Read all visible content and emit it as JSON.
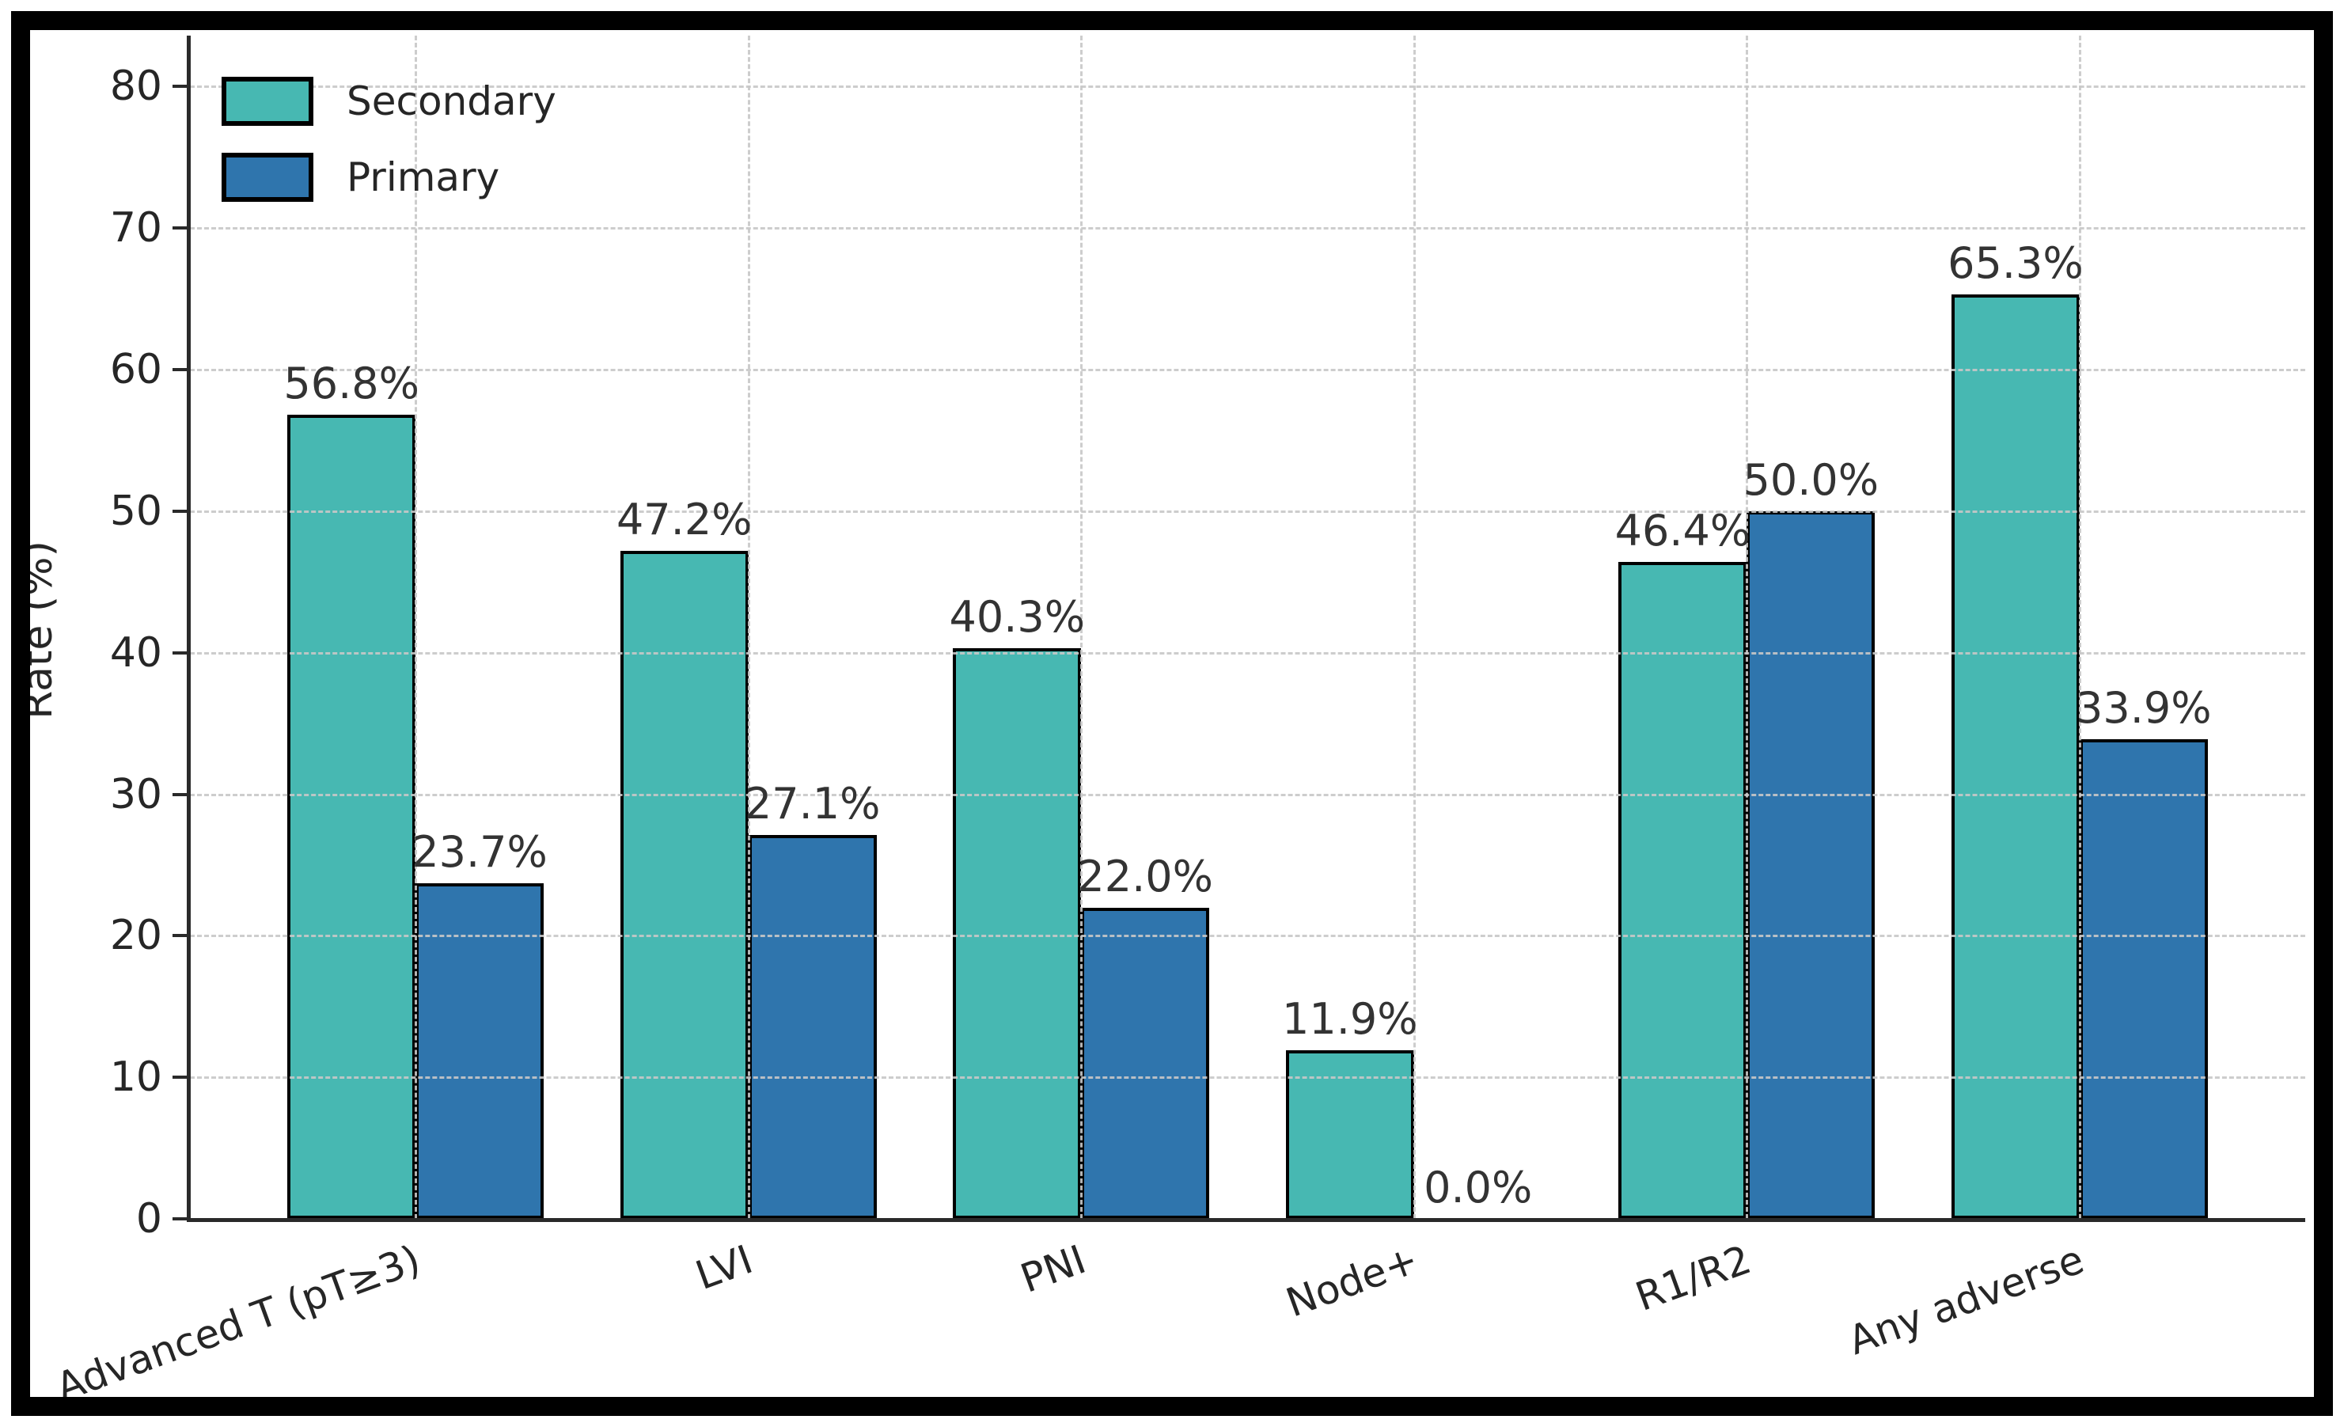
{
  "chart_data": {
    "type": "bar",
    "title": "",
    "categories": [
      "Advanced T (pT≥3)",
      "LVI",
      "PNI",
      "Node+",
      "R1/R2",
      "Any adverse"
    ],
    "series": [
      {
        "name": "Secondary",
        "color": "#47b8b2",
        "values": [
          56.8,
          47.2,
          40.3,
          11.9,
          46.4,
          65.3
        ]
      },
      {
        "name": "Primary",
        "color": "#2f75ad",
        "values": [
          23.7,
          27.1,
          22.0,
          0.0,
          50.0,
          33.9
        ]
      }
    ],
    "value_label_format": "percent_one_decimal",
    "xlabel": "",
    "ylabel": "Rate (%)",
    "ylim": [
      0,
      83.6
    ],
    "yticks": [
      0,
      10,
      20,
      30,
      40,
      50,
      60,
      70,
      80
    ],
    "grid": {
      "horizontal": true,
      "vertical": true,
      "style": "dashed",
      "color": "#c8c8c8",
      "on_top_of_bars": true
    },
    "legend": {
      "position": "upper-left",
      "entries": [
        "Secondary",
        "Primary"
      ]
    },
    "bar_edge_color": "#000000",
    "axis_color": "#2a2a2a",
    "text_color": "#262626",
    "xtick_rotation_deg": 20
  }
}
